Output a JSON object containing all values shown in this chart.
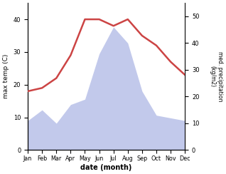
{
  "months": [
    "Jan",
    "Feb",
    "Mar",
    "Apr",
    "May",
    "Jun",
    "Jul",
    "Aug",
    "Sep",
    "Oct",
    "Nov",
    "Dec"
  ],
  "temp": [
    18,
    19,
    22,
    29,
    40,
    40,
    38,
    40,
    35,
    32,
    27,
    23
  ],
  "precip": [
    11,
    15,
    10,
    17,
    19,
    36,
    46,
    40,
    22,
    13,
    12,
    11
  ],
  "temp_color": "#cc4444",
  "precip_fill_color": "#b8c0e8",
  "xlabel": "date (month)",
  "ylabel_left": "max temp (C)",
  "ylabel_right": "med. precipitation\n(kg/m2)",
  "ylim_left": [
    0,
    45
  ],
  "ylim_right": [
    0,
    55
  ],
  "yticks_left": [
    0,
    10,
    20,
    30,
    40
  ],
  "yticks_right": [
    0,
    10,
    20,
    30,
    40,
    50
  ],
  "figsize": [
    3.18,
    2.44
  ],
  "dpi": 100
}
